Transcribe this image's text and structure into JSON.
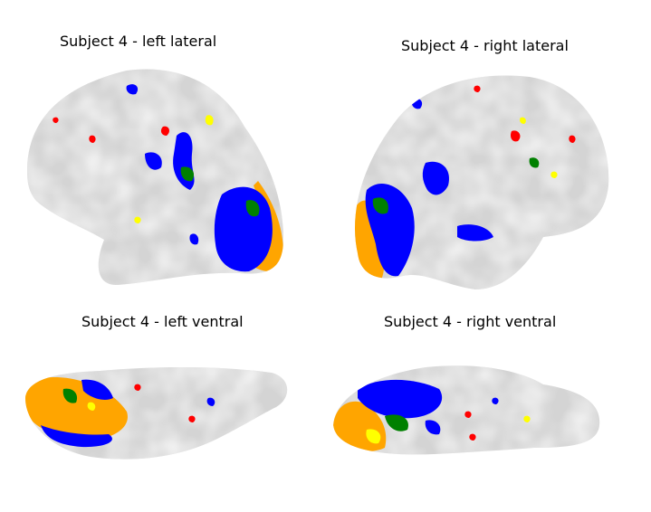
{
  "panels": [
    {
      "title": "Subject 4 - left lateral"
    },
    {
      "title": "Subject 4 - right lateral"
    },
    {
      "title": "Subject 4 - left ventral"
    },
    {
      "title": "Subject 4 - right ventral"
    }
  ],
  "colors": {
    "background": "#ffffff",
    "cortex_light": "#e6e6e6",
    "cortex_dark": "#a9a9a9",
    "blue": "#0000ff",
    "orange": "#ffa500",
    "green": "#008000",
    "yellow": "#ffff00",
    "red": "#ff0000"
  }
}
